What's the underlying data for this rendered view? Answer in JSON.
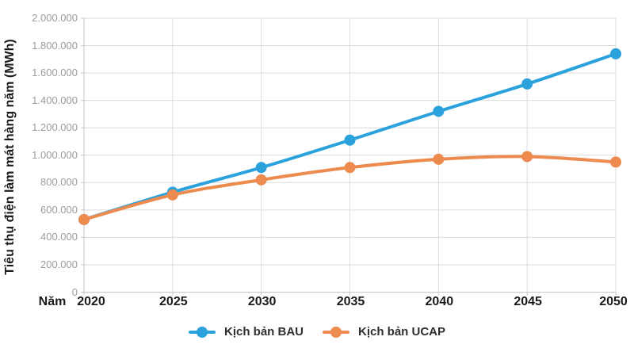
{
  "chart_data": {
    "type": "line",
    "title": "",
    "xlabel": "Năm",
    "ylabel": "Tiêu thụ điện làm mát hàng năm (MWh)",
    "x_categories": [
      "2020",
      "2025",
      "2030",
      "2035",
      "2040",
      "2045",
      "2050"
    ],
    "y_ticks": [
      "0",
      "200.000",
      "400.000",
      "600.000",
      "800.000",
      "1.000.000",
      "1.200.000",
      "1.400.000",
      "1.600.000",
      "1.800.000",
      "2.000.000"
    ],
    "y_tick_values": [
      0,
      200000,
      400000,
      600000,
      800000,
      1000000,
      1200000,
      1400000,
      1600000,
      1800000,
      2000000
    ],
    "ylim": [
      0,
      2000000
    ],
    "grid": true,
    "legend_position": "bottom",
    "series": [
      {
        "name": "Kịch bản BAU",
        "color": "#2CA2DC",
        "values": [
          530000,
          730000,
          910000,
          1110000,
          1320000,
          1520000,
          1740000
        ]
      },
      {
        "name": "Kịch bản UCAP",
        "color": "#ED8B4F",
        "values": [
          530000,
          710000,
          820000,
          910000,
          970000,
          990000,
          950000
        ]
      }
    ]
  },
  "colors": {
    "background": "#ffffff",
    "grid": "#dbdbdb",
    "axis": "#c6c6c6",
    "y_tick_text": "#9c9c9c",
    "x_tick_text": "#1a1a1a",
    "legend_text": "#2e2e2e"
  }
}
